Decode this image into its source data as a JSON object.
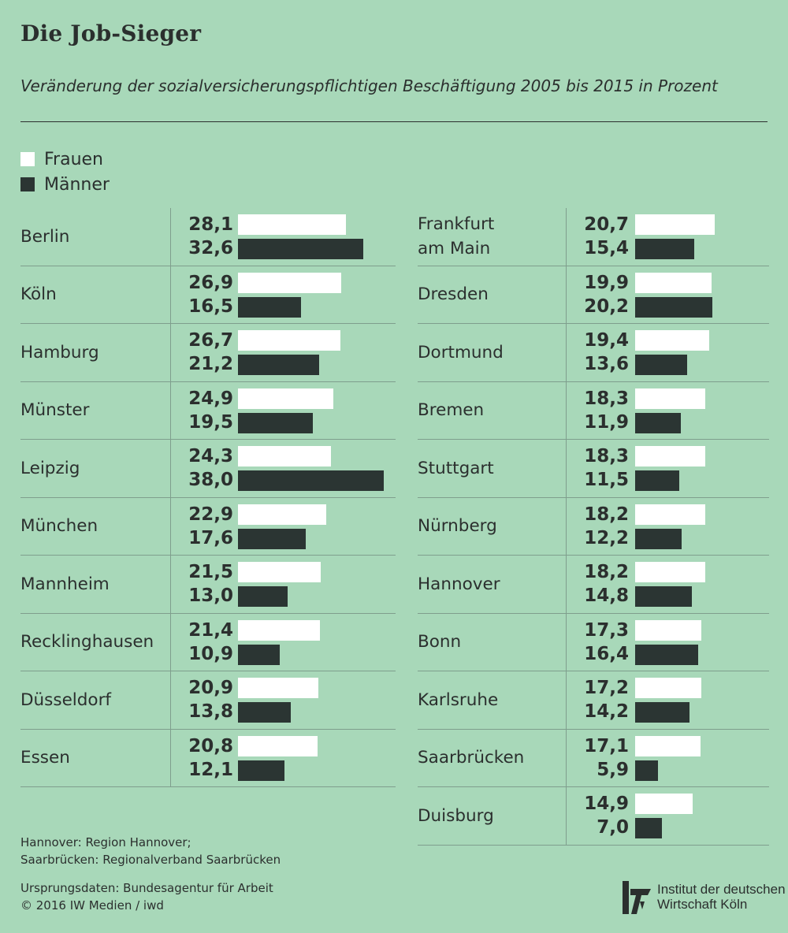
{
  "header": {
    "title": "Die Job-Sieger",
    "subtitle": "Veränderung der sozialversicherungspflichtigen Beschäftigung 2005 bis 2015 in Prozent"
  },
  "legend": {
    "frauen": "Frauen",
    "maenner": "Männer"
  },
  "colors": {
    "background": "#a8d8b9",
    "frauen": "#ffffff",
    "maenner": "#2b3533"
  },
  "chart_data": {
    "type": "bar",
    "orientation": "horizontal",
    "series": [
      {
        "name": "Frauen"
      },
      {
        "name": "Männer"
      }
    ],
    "columns": [
      [
        {
          "city": [
            "Berlin"
          ],
          "frauen": "28,1",
          "maenner": "32,6"
        },
        {
          "city": [
            "Köln"
          ],
          "frauen": "26,9",
          "maenner": "16,5"
        },
        {
          "city": [
            "Hamburg"
          ],
          "frauen": "26,7",
          "maenner": "21,2"
        },
        {
          "city": [
            "Münster"
          ],
          "frauen": "24,9",
          "maenner": "19,5"
        },
        {
          "city": [
            "Leipzig"
          ],
          "frauen": "24,3",
          "maenner": "38,0"
        },
        {
          "city": [
            "München"
          ],
          "frauen": "22,9",
          "maenner": "17,6"
        },
        {
          "city": [
            "Mannheim"
          ],
          "frauen": "21,5",
          "maenner": "13,0"
        },
        {
          "city": [
            "Recklinghausen"
          ],
          "frauen": "21,4",
          "maenner": "10,9"
        },
        {
          "city": [
            "Düsseldorf"
          ],
          "frauen": "20,9",
          "maenner": "13,8"
        },
        {
          "city": [
            "Essen"
          ],
          "frauen": "20,8",
          "maenner": "12,1"
        }
      ],
      [
        {
          "city": [
            "Frankfurt",
            "am Main"
          ],
          "frauen": "20,7",
          "maenner": "15,4"
        },
        {
          "city": [
            "Dresden"
          ],
          "frauen": "19,9",
          "maenner": "20,2"
        },
        {
          "city": [
            "Dortmund"
          ],
          "frauen": "19,4",
          "maenner": "13,6"
        },
        {
          "city": [
            "Bremen"
          ],
          "frauen": "18,3",
          "maenner": "11,9"
        },
        {
          "city": [
            "Stuttgart"
          ],
          "frauen": "18,3",
          "maenner": "11,5"
        },
        {
          "city": [
            "Nürnberg"
          ],
          "frauen": "18,2",
          "maenner": "12,2"
        },
        {
          "city": [
            "Hannover"
          ],
          "frauen": "18,2",
          "maenner": "14,8"
        },
        {
          "city": [
            "Bonn"
          ],
          "frauen": "17,3",
          "maenner": "16,4"
        },
        {
          "city": [
            "Karlsruhe"
          ],
          "frauen": "17,2",
          "maenner": "14,2"
        },
        {
          "city": [
            "Saarbrücken"
          ],
          "frauen": "17,1",
          "maenner": "5,9"
        },
        {
          "city": [
            "Duisburg"
          ],
          "frauen": "14,9",
          "maenner": "7,0"
        }
      ]
    ]
  },
  "footer": {
    "note_1": "Hannover: Region Hannover;",
    "note_2": "Saarbrücken: Regionalverband Saarbrücken",
    "source_1": "Ursprungsdaten: Bundesagentur für Arbeit",
    "source_2": "© 2016 IW Medien / iwd",
    "logo_line_1": "Institut der deutschen",
    "logo_line_2": "Wirtschaft Köln"
  }
}
